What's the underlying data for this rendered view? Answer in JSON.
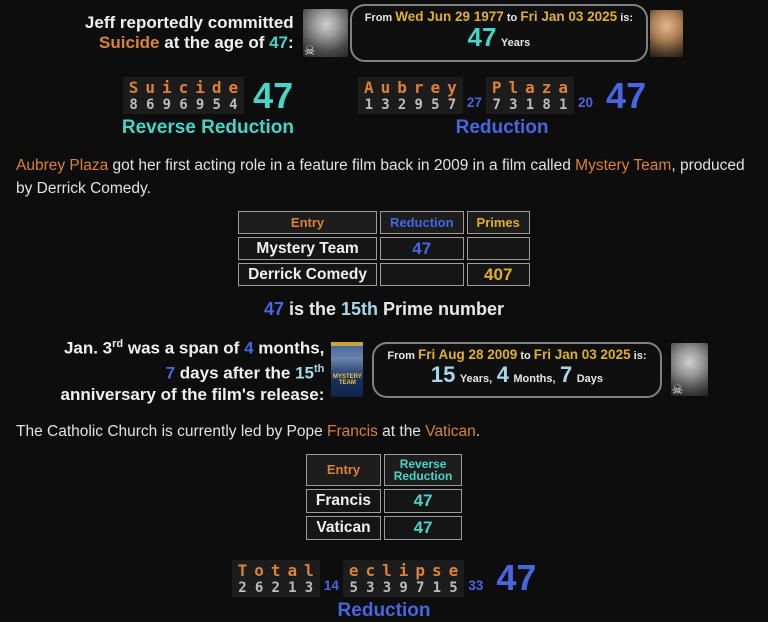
{
  "colors": {
    "bg": "#0d0d0d",
    "orange": "#dd8136",
    "gold": "#e0b02a",
    "teal": "#45d6c8",
    "blue": "#4866e0",
    "pale": "#a7d8ea",
    "digits": "#bdbdbd",
    "border": "#9c9c9c"
  },
  "header": {
    "line1": "Jeff reportedly committed",
    "suicide": "Suicide",
    "mid": " at the age of ",
    "age": "47",
    "colon": ":"
  },
  "widget1": {
    "from": "From",
    "date1": "Wed Jun 29 1977",
    "to": "to",
    "date2": "Fri Jan 03 2025",
    "is": "is:",
    "value": "47",
    "unit": "Years"
  },
  "gem1": {
    "word": "Suicide",
    "digits": "8696954",
    "total": "47",
    "label": "Reverse Reduction"
  },
  "gem2": {
    "word1": "Aubrey",
    "digits1": "132957",
    "sub1": "27",
    "word2": "Plaza",
    "digits2": "73181",
    "sub2": "20",
    "total": "47",
    "label": "Reduction"
  },
  "para1": {
    "a": "Aubrey Plaza",
    "b": " got her first acting role in a feature film back in 2009 in a film called ",
    "c": "Mystery Team",
    "d": ", produced by Derrick Comedy."
  },
  "table1": {
    "headers": [
      "Entry",
      "Reduction",
      "Primes"
    ],
    "rows": [
      [
        "Mystery Team",
        "47",
        ""
      ],
      [
        "Derrick Comedy",
        "",
        "407"
      ]
    ]
  },
  "prime_line": {
    "a": "47",
    "b": " is the ",
    "c": "15th",
    "d": " Prime number"
  },
  "span_block": {
    "l1a": "Jan. 3",
    "l1sup": "rd",
    "l1b": " was a span of ",
    "l1num": "4",
    "l1c": " months,",
    "l2num": "7",
    "l2a": " days after the ",
    "l2num2": "15",
    "l2sup": "th",
    "l3": "anniversary of the film's release:"
  },
  "widget2": {
    "from": "From",
    "date1": "Fri Aug 28 2009",
    "to": "to",
    "date2": "Fri Jan 03 2025",
    "is": "is:",
    "v1": "15",
    "u1": "Years,",
    "v2": "4",
    "u2": "Months,",
    "v3": "7",
    "u3": "Days",
    "poster_label": "MYSTERY TEAM"
  },
  "para2": {
    "a": "The Catholic Church is currently led by Pope ",
    "b": "Francis",
    "c": " at the ",
    "d": "Vatican",
    "e": "."
  },
  "table2": {
    "headers": [
      "Entry",
      "Reverse Reduction"
    ],
    "rows": [
      [
        "Francis",
        "47"
      ],
      [
        "Vatican",
        "47"
      ]
    ]
  },
  "gem3": {
    "word1": "Total",
    "digits1": "26213",
    "sub1": "14",
    "word2": "eclipse",
    "digits2": "5339715",
    "sub2": "33",
    "total": "47",
    "label": "Reduction"
  }
}
